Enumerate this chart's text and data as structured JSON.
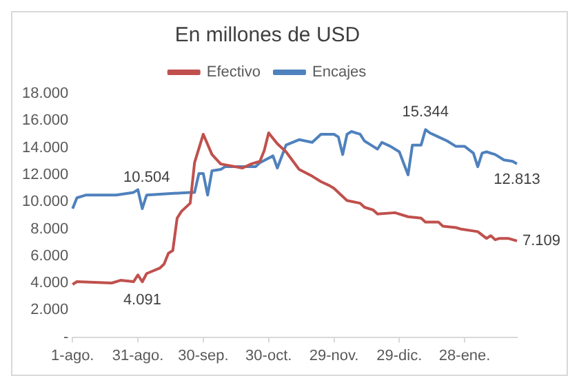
{
  "chart_data": {
    "type": "line",
    "title": "En millones de USD",
    "legend": "top",
    "grid": false,
    "marker": "none",
    "line_style": "solid",
    "categories": [
      "1-ago.",
      null,
      null,
      null,
      null,
      null,
      null,
      null,
      null,
      null,
      null,
      null,
      null,
      null,
      null,
      "31-ago.",
      null,
      null,
      null,
      null,
      null,
      null,
      null,
      null,
      null,
      null,
      null,
      null,
      null,
      null,
      "30-sep.",
      null,
      null,
      null,
      null,
      null,
      null,
      null,
      null,
      null,
      null,
      null,
      null,
      null,
      null,
      "30-oct.",
      null,
      null,
      null,
      null,
      null,
      null,
      null,
      null,
      null,
      null,
      null,
      null,
      null,
      null,
      "29-nov.",
      null,
      null,
      null,
      null,
      null,
      null,
      null,
      null,
      null,
      null,
      null,
      null,
      null,
      null,
      "29-dic.",
      null,
      null,
      null,
      null,
      null,
      null,
      null,
      null,
      null,
      null,
      null,
      null,
      null,
      null,
      "28-ene.",
      null,
      null,
      null,
      null,
      null,
      null,
      null,
      null,
      null,
      null,
      null,
      null
    ],
    "ylim": [
      0,
      18000
    ],
    "yticks": [
      {
        "value": 0,
        "label": "-"
      },
      {
        "value": 2000,
        "label": "2.000"
      },
      {
        "value": 4000,
        "label": "4.000"
      },
      {
        "value": 6000,
        "label": "6.000"
      },
      {
        "value": 8000,
        "label": "8.000"
      },
      {
        "value": 10000,
        "label": "10.000"
      },
      {
        "value": 12000,
        "label": "12.000"
      },
      {
        "value": 14000,
        "label": "14.000"
      },
      {
        "value": 16000,
        "label": "16.000"
      },
      {
        "value": 18000,
        "label": "18.000"
      }
    ],
    "series": [
      {
        "name": "Efectivo",
        "color": "#c0504d",
        "values": [
          3900,
          4100,
          null,
          null,
          null,
          null,
          null,
          null,
          null,
          4000,
          null,
          4200,
          null,
          null,
          4100,
          4600,
          4091,
          4700,
          null,
          null,
          5100,
          5400,
          6200,
          6400,
          8800,
          9300,
          null,
          9900,
          12900,
          null,
          15000,
          null,
          13500,
          null,
          12800,
          null,
          null,
          null,
          null,
          12500,
          null,
          12800,
          null,
          13000,
          13800,
          15100,
          null,
          14300,
          null,
          13700,
          null,
          null,
          12400,
          null,
          null,
          11900,
          null,
          11500,
          null,
          11200,
          11000,
          null,
          null,
          10100,
          null,
          null,
          9900,
          9600,
          null,
          9400,
          9100,
          null,
          null,
          null,
          9200,
          null,
          null,
          8900,
          null,
          null,
          8800,
          8500,
          null,
          null,
          8500,
          8200,
          null,
          null,
          8100,
          8000,
          null,
          null,
          null,
          7800,
          null,
          7300,
          7500,
          7200,
          7300,
          null,
          7300,
          null,
          7109
        ],
        "value_labels": [
          null,
          null,
          null,
          null,
          null,
          null,
          null,
          null,
          null,
          null,
          null,
          null,
          null,
          null,
          null,
          null,
          "4.091",
          null,
          null,
          null,
          null,
          null,
          null,
          null,
          null,
          null,
          null,
          null,
          null,
          null,
          null,
          null,
          null,
          null,
          null,
          null,
          null,
          null,
          null,
          null,
          null,
          null,
          null,
          null,
          null,
          null,
          null,
          null,
          null,
          null,
          null,
          null,
          null,
          null,
          null,
          null,
          null,
          null,
          null,
          null,
          null,
          null,
          null,
          null,
          null,
          null,
          null,
          null,
          null,
          null,
          null,
          null,
          null,
          null,
          null,
          null,
          null,
          null,
          null,
          null,
          null,
          null,
          null,
          null,
          null,
          null,
          null,
          null,
          null,
          null,
          null,
          null,
          null,
          null,
          null,
          null,
          null,
          null,
          null,
          null,
          null,
          null,
          "7.109"
        ]
      },
      {
        "name": "Encajes",
        "color": "#4f81bd",
        "values": [
          9500,
          10300,
          null,
          10500,
          null,
          null,
          null,
          null,
          null,
          null,
          10500,
          null,
          null,
          null,
          10700,
          10900,
          9500,
          10504,
          null,
          null,
          null,
          null,
          null,
          null,
          null,
          null,
          null,
          10700,
          10700,
          12100,
          12100,
          10500,
          12300,
          null,
          12400,
          12600,
          null,
          null,
          null,
          null,
          12600,
          null,
          12600,
          12900,
          null,
          null,
          13400,
          12500,
          null,
          14200,
          null,
          null,
          14600,
          null,
          null,
          14400,
          null,
          15000,
          null,
          null,
          15000,
          14800,
          13500,
          15000,
          15200,
          null,
          15000,
          14500,
          null,
          14100,
          13900,
          14400,
          null,
          14100,
          null,
          13700,
          null,
          12000,
          14200,
          null,
          14200,
          15344,
          15100,
          null,
          14800,
          null,
          14500,
          null,
          14100,
          null,
          14100,
          null,
          13600,
          12600,
          13600,
          13700,
          null,
          13500,
          null,
          13100,
          null,
          13000,
          12813
        ],
        "value_labels": [
          null,
          null,
          null,
          null,
          null,
          null,
          null,
          null,
          null,
          null,
          null,
          null,
          null,
          null,
          null,
          null,
          null,
          "10.504",
          null,
          null,
          null,
          null,
          null,
          null,
          null,
          null,
          null,
          null,
          null,
          null,
          null,
          null,
          null,
          null,
          null,
          null,
          null,
          null,
          null,
          null,
          null,
          null,
          null,
          null,
          null,
          null,
          null,
          null,
          null,
          null,
          null,
          null,
          null,
          null,
          null,
          null,
          null,
          null,
          null,
          null,
          null,
          null,
          null,
          null,
          null,
          null,
          null,
          null,
          null,
          null,
          null,
          null,
          null,
          null,
          null,
          null,
          null,
          null,
          null,
          null,
          null,
          "15.344",
          null,
          null,
          null,
          null,
          null,
          null,
          null,
          null,
          null,
          null,
          null,
          null,
          null,
          null,
          null,
          null,
          null,
          null,
          null,
          null,
          "12.813"
        ]
      }
    ]
  }
}
